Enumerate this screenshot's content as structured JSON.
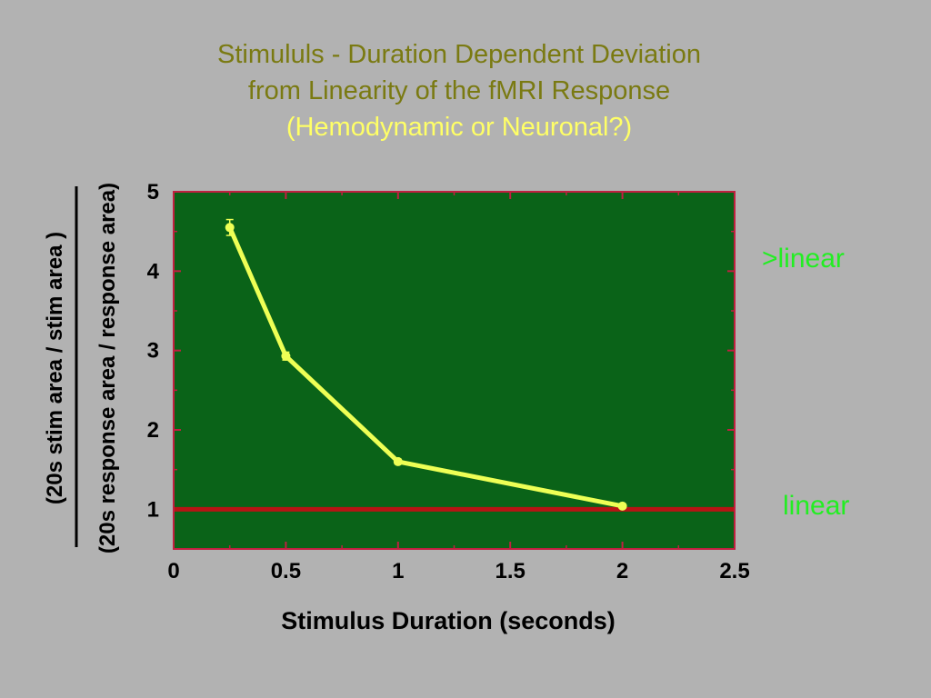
{
  "slide": {
    "title_line1": "Stimululs - Duration Dependent Deviation",
    "title_line2": "from Linearity of the fMRI Response",
    "title_line3": "(Hemodynamic or Neuronal?)"
  },
  "chart_data": {
    "type": "line",
    "xlabel": "Stimulus Duration (seconds)",
    "ylabel_numerator": "(20s stim area / stim area )",
    "ylabel_denominator": "(20s response area / response area)",
    "xlim": [
      0,
      2.5
    ],
    "ylim": [
      0.5,
      5
    ],
    "x_ticks": [
      "0",
      "0.5",
      "1",
      "1.5",
      "2",
      "2.5"
    ],
    "y_ticks": [
      "1",
      "2",
      "3",
      "4",
      "5"
    ],
    "series": [
      {
        "x": [
          0.25,
          0.5,
          1,
          2
        ],
        "y": [
          4.55,
          2.93,
          1.6,
          1.04
        ],
        "error": [
          0.1,
          0.05,
          0.03,
          0.02
        ],
        "color": "#eeff55"
      }
    ],
    "reference_line": {
      "y": 1,
      "color": "#b81414"
    },
    "plot_background": "#0a6318",
    "annotations": {
      "above": ">linear",
      "reference": "linear"
    }
  }
}
